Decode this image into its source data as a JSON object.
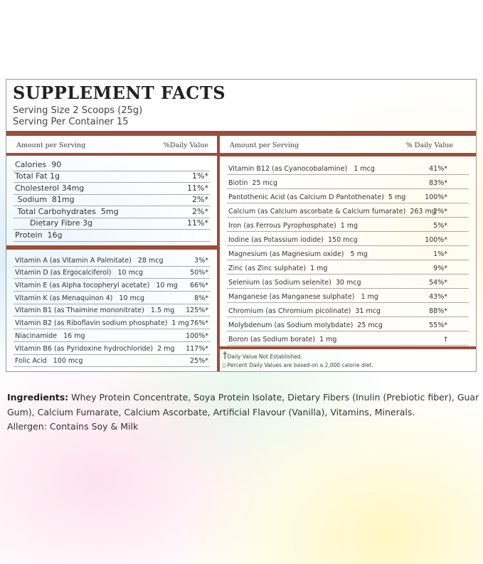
{
  "title": "SUPPLEMENT FACTS",
  "serving_size": "Serving Size 2 Scoops (25g)",
  "servings_per_container": "Serving Per Container 15",
  "left": {
    "amount_header": "Amount per Serving",
    "dv_header": "%Daily Value",
    "macros": [
      {
        "name": "Calories  90",
        "dv": ""
      },
      {
        "name": "Total Fat 1g",
        "dv": "1%*"
      },
      {
        "name": "Cholesterol 34mg",
        "dv": "11%*"
      },
      {
        "name": " Sodium  81mg",
        "dv": "2%*"
      },
      {
        "name": " Total Carbohydrates  5mg",
        "dv": "2%*"
      },
      {
        "name": "      Dietary Fibre 3g",
        "dv": "11%*"
      },
      {
        "name": "Protein  16g",
        "dv": ""
      }
    ],
    "vitamins": [
      {
        "name": "Vitamin A (as Vitamin A Palmitate)   28 mcg",
        "dv": "3%*"
      },
      {
        "name": "Vitamin D (as Ergocalciferol)   10 mcg",
        "dv": "50%*"
      },
      {
        "name": "Vitamin E (as Alpha tocopheryl acetate)   10 mg",
        "dv": "66%*"
      },
      {
        "name": "Vitamin K (as Menaquinon 4)   10 mcg",
        "dv": "8%*"
      },
      {
        "name": "Vitamin B1 (as Thaimine mononitrate)   1.5 mg",
        "dv": "125%*"
      },
      {
        "name": "Vitamin B2 (as Riboflavin sodium phosphate)  1 mg",
        "dv": "76%*"
      },
      {
        "name": "Niacinamide   16 mg",
        "dv": "100%*"
      },
      {
        "name": "Vitamin B6 (as Pyridoxine hydrochloride)  2 mg",
        "dv": "117%*"
      },
      {
        "name": "Folic Acid   100 mcg",
        "dv": "25%*"
      }
    ]
  },
  "right": {
    "amount_header": "Amount per Serving",
    "dv_header": "% Daily Value",
    "rows": [
      {
        "name": "Vitamin B12 (as Cyanocobalamine)   1 mcg",
        "dv": "41%*"
      },
      {
        "name": "Biotin  25 mcg",
        "dv": "83%*"
      },
      {
        "name": "Pantothenic Acid (as Calcium D Pantothenate)  5 mg",
        "dv": "100%*"
      },
      {
        "name": "Calcium (as Calcium ascorbate & Calcium fumarate)  263 mg",
        "dv": "2%*"
      },
      {
        "name": "Iron (as Ferrous Pyrophosphate)  1 mg",
        "dv": "5%*"
      },
      {
        "name": "Iodine (as Potassium iodide)  150 mcg",
        "dv": "100%*"
      },
      {
        "name": "Magnesium (as Magnesium oxide)   5 mg",
        "dv": "1%*"
      },
      {
        "name": "Zinc (as Zinc sulphate)  1 mg",
        "dv": "9%*"
      },
      {
        "name": "Selenium (as Sodium selenite)  30 mcg",
        "dv": "54%*"
      },
      {
        "name": "Manganese (as Manganese sulphate)   1 mg",
        "dv": "43%*"
      },
      {
        "name": "Chromium (as Chromium picolinate)  31 mcg",
        "dv": "88%*"
      },
      {
        "name": "Molybdenum (as Sodium molybdate)  25 mcg",
        "dv": "55%*"
      },
      {
        "name": "Boron (as Sodium borate)  1 mg",
        "dv": "†"
      }
    ],
    "foot1_symbol": "†",
    "foot1": "Daily Value Not Established.",
    "foot2": "▯ Percent Daily Values are based on a 2,000 calorie  diet."
  },
  "ingredients_label": "Ingredients:",
  "ingredients": " Whey Protein Concentrate, Soya Protein Isolate, Dietary Fibers (Inulin (Prebiotic fiber), Guar Gum), Calcium Fumarate, Calcium Ascorbate, Artificial Flavour (Vanilla),  Vitamins, Minerals.",
  "allergen": "Allergen: Contains Soy & Milk",
  "colors": {
    "accent": "#9b4e3c"
  }
}
